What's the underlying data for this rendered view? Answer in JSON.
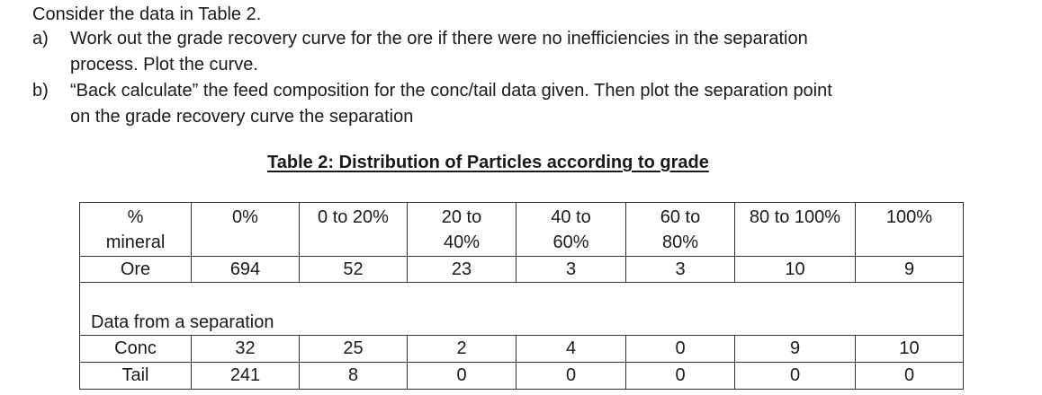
{
  "intro": "Consider the data in Table 2.",
  "question_a": {
    "letter": "a)",
    "line1": "Work out the grade recovery curve for the ore if there were no inefficiencies in the separation",
    "line2": "process.  Plot the curve."
  },
  "question_b": {
    "letter": "b)",
    "line1": "“Back calculate” the feed composition for the conc/tail data given.  Then plot the separation point",
    "line2": "on the grade recovery curve the separation"
  },
  "table_title": "Table 2:  Distribution of Particles according to grade",
  "table": {
    "header": [
      {
        "line1": "%",
        "line2": "mineral"
      },
      {
        "line1": "0%",
        "line2": ""
      },
      {
        "line1": "0 to 20%",
        "line2": ""
      },
      {
        "line1": "20 to",
        "line2": "40%"
      },
      {
        "line1": "40 to",
        "line2": "60%"
      },
      {
        "line1": "60 to",
        "line2": "80%"
      },
      {
        "line1": "80 to 100%",
        "line2": ""
      },
      {
        "line1": "100%",
        "line2": ""
      }
    ],
    "ore": {
      "label": "Ore",
      "values": [
        "694",
        "52",
        "23",
        "3",
        "3",
        "10",
        "9"
      ]
    },
    "separation_label": "Data from a separation",
    "conc": {
      "label": "Conc",
      "values": [
        "32",
        "25",
        "2",
        "4",
        "0",
        "9",
        "10"
      ]
    },
    "tail": {
      "label": "Tail",
      "values": [
        "241",
        "8",
        "0",
        "0",
        "0",
        "0",
        "0"
      ]
    }
  }
}
